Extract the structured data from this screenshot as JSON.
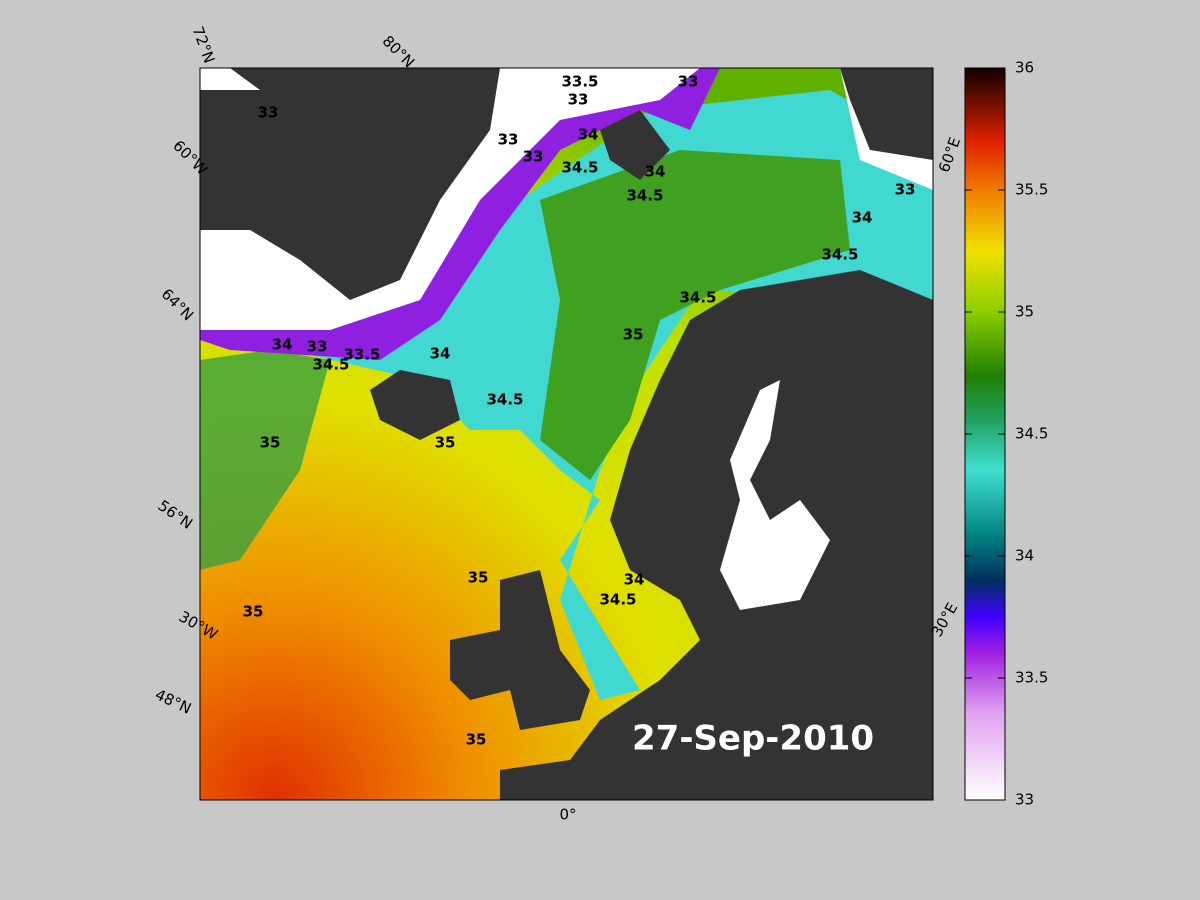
{
  "map": {
    "date": "27-Sep-2010",
    "grid_labels": [
      "72°N",
      "80°N",
      "60°W",
      "64°N",
      "56°N",
      "30°W",
      "48°N",
      "0°",
      "30°E",
      "60°E"
    ],
    "contour_labels": [
      "33",
      "33.5",
      "33",
      "33",
      "33",
      "34",
      "33",
      "34.5",
      "34",
      "34.5",
      "33",
      "34",
      "34.5",
      "34.5",
      "35",
      "34",
      "33",
      "33.5",
      "34",
      "34.5",
      "34.5",
      "35",
      "35",
      "35",
      "34",
      "34.5",
      "35",
      "35"
    ]
  },
  "colorbar": {
    "lim": [
      33,
      36
    ],
    "ticks": [
      33,
      33.5,
      34,
      34.5,
      35,
      35.5,
      36
    ]
  }
}
